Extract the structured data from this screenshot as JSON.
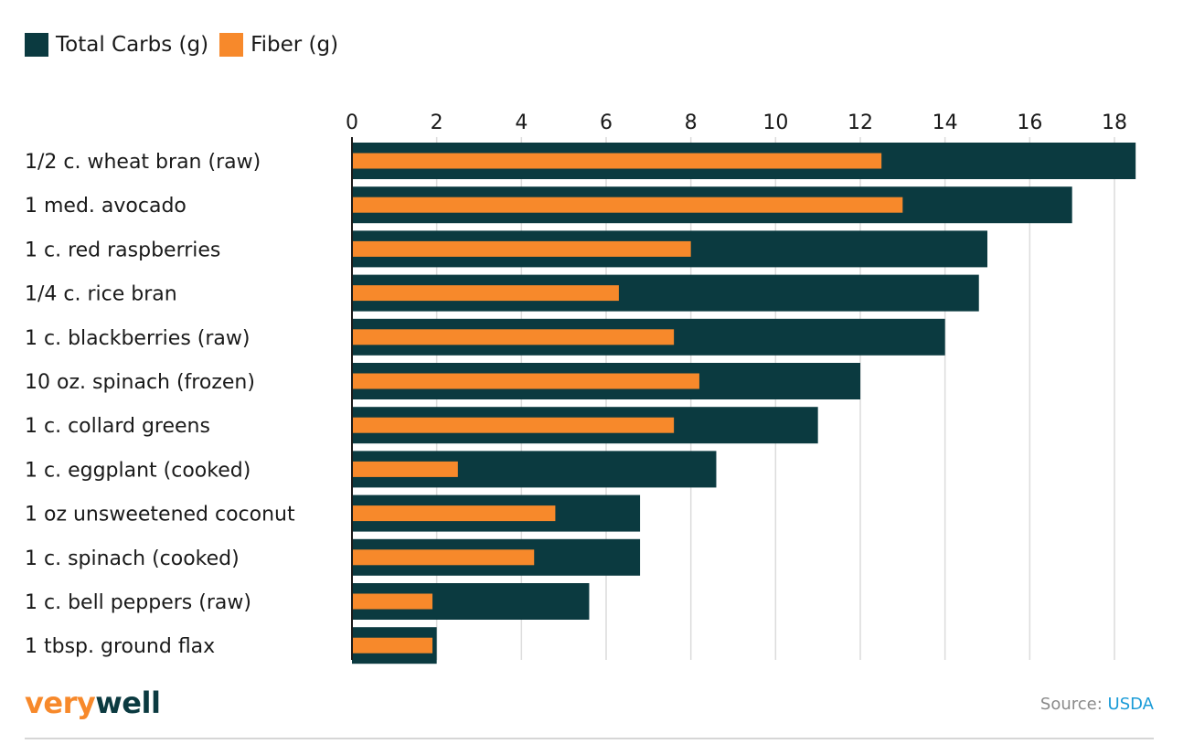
{
  "chart_data": {
    "type": "bar",
    "orientation": "horizontal",
    "title": "",
    "xlabel": "",
    "ylabel": "",
    "xlim": [
      0,
      18.7
    ],
    "xticks": [
      0,
      2,
      4,
      6,
      8,
      10,
      12,
      14,
      16,
      18
    ],
    "grid": true,
    "legend_position": "top-left",
    "categories": [
      "1/2 c. wheat bran (raw)",
      "1 med. avocado",
      "1 c. red raspberries",
      "1/4 c. rice bran",
      "1 c. blackberries (raw)",
      "10 oz. spinach (frozen)",
      "1 c. collard greens",
      "1 c. eggplant (cooked)",
      "1 oz unsweetened coconut",
      "1 c. spinach (cooked)",
      "1 c. bell peppers (raw)",
      "1 tbsp. ground flax"
    ],
    "series": [
      {
        "name": "Total Carbs (g)",
        "color": "#0b3a40",
        "values": [
          18.5,
          17.0,
          15.0,
          14.8,
          14.0,
          12.0,
          11.0,
          8.6,
          6.8,
          6.8,
          5.6,
          2.0
        ]
      },
      {
        "name": "Fiber (g)",
        "color": "#f7892b",
        "values": [
          12.5,
          13.0,
          8.0,
          6.3,
          7.6,
          8.2,
          7.6,
          2.5,
          4.8,
          4.3,
          1.9,
          1.9
        ]
      }
    ]
  },
  "footer": {
    "logo_part1": "very",
    "logo_part2": "well",
    "source_label": "Source: ",
    "source_name": "USDA"
  }
}
